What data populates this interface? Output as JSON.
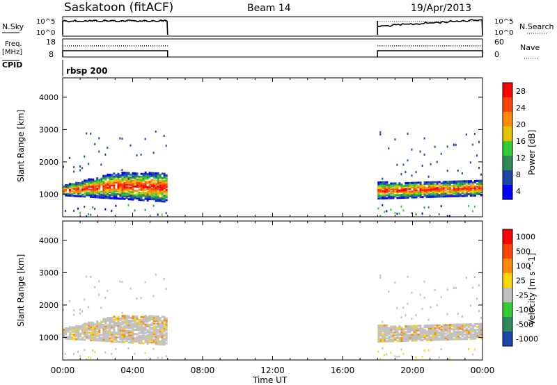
{
  "header": {
    "title": "Saskatoon (fitACF)",
    "beam": "Beam 14",
    "date": "19/Apr/2013"
  },
  "side_labels": {
    "nsky": "N.Sky",
    "nsearch": "N.Search",
    "freq_line1": "Freq.",
    "freq_line2": "[MHz]",
    "nave": "Nave",
    "cpid": "CPID",
    "cpid_value": "rbsp 200"
  },
  "noise_panel": {
    "left_ticks": [
      "10^5",
      "10^0"
    ],
    "right_ticks": [
      "10^5",
      "10^0"
    ]
  },
  "freq_panel": {
    "left_ticks": [
      "18",
      "8"
    ],
    "right_ticks": [
      "60",
      "0"
    ]
  },
  "chart_data": [
    {
      "type": "heatmap",
      "name": "power",
      "ylabel": "Slant Range [km]",
      "xlabel": "",
      "ylim": [
        300,
        4600
      ],
      "y_ticks": [
        "4000",
        "3000",
        "2000",
        "1000"
      ],
      "x_ticks": [
        "00:00",
        "04:00",
        "08:00",
        "12:00",
        "16:00",
        "20:00",
        "00:00"
      ],
      "colorbar": {
        "label": "Power [dB]",
        "ticks": [
          "28",
          "24",
          "20",
          "16",
          "12",
          "8",
          "4"
        ],
        "colors": [
          "#0000ff",
          "#1f47a8",
          "#2e8b57",
          "#32cd32",
          "#e6c200",
          "#ff8c00",
          "#ff4500",
          "#ff0000"
        ]
      },
      "data_windows_ut": [
        [
          0.0,
          6.0
        ],
        [
          18.0,
          24.0
        ]
      ],
      "main_band_km": [
        [
          0.0,
          1000,
          1300
        ],
        [
          3.0,
          900,
          1700
        ],
        [
          6.0,
          800,
          1700
        ],
        [
          18.0,
          900,
          1400
        ],
        [
          24.0,
          1000,
          1450
        ]
      ]
    },
    {
      "type": "heatmap",
      "name": "velocity",
      "ylabel": "Slant Range [km]",
      "xlabel": "Time UT",
      "ylim": [
        300,
        4600
      ],
      "y_ticks": [
        "4000",
        "3000",
        "2000",
        "1000"
      ],
      "x_ticks": [
        "00:00",
        "04:00",
        "08:00",
        "12:00",
        "16:00",
        "20:00",
        "00:00"
      ],
      "colorbar": {
        "label": "Velocity [m s^-1]",
        "ticks": [
          "1000",
          "500",
          "100",
          "25",
          "-25",
          "-100",
          "-500",
          "-1000"
        ],
        "colors": [
          "#1f47a8",
          "#2e8b57",
          "#32cd32",
          "#c0c0c0",
          "#ffd700",
          "#ff8c00",
          "#ff4500",
          "#ff0000"
        ]
      },
      "data_windows_ut": [
        [
          0.0,
          6.0
        ],
        [
          18.0,
          24.0
        ]
      ]
    }
  ]
}
